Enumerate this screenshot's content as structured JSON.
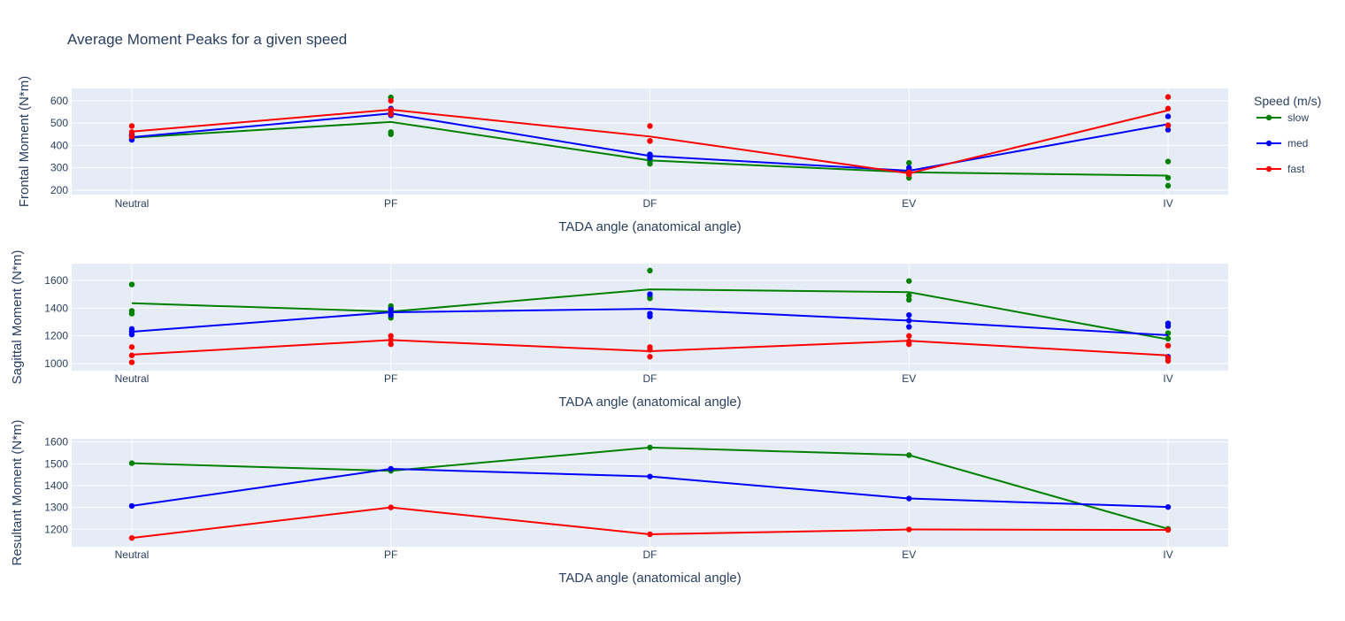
{
  "chart_data": {
    "type": "line",
    "title": "Average Moment Peaks for a given speed",
    "legend": {
      "title": "Speed (m/s)",
      "placement": "right",
      "entries": [
        "slow",
        "med",
        "fast"
      ]
    },
    "colors": {
      "slow": "#008000",
      "med": "#0000ff",
      "fast": "#ff0000",
      "plot_bg": "#e5ecf6",
      "text": "#2a3f5f"
    },
    "categories": [
      "Neutral",
      "PF",
      "DF",
      "EV",
      "IV"
    ],
    "subplots": [
      {
        "ylabel": "Frontal Moment (N*m)",
        "xlabel": "TADA angle (anatomical angle)",
        "ylim": [
          180,
          655
        ],
        "yticks": [
          "200",
          "300",
          "400",
          "500",
          "600"
        ],
        "series": [
          {
            "name": "slow",
            "line": [
              435,
              505,
              333,
              280,
              265
            ],
            "points": [
              [
                430,
                445,
                450
              ],
              [
                615,
                460,
                450
              ],
              [
                330,
                318,
                340
              ],
              [
                322,
                255,
                270
              ],
              [
                328,
                255,
                220
              ]
            ]
          },
          {
            "name": "med",
            "line": [
              437,
              543,
              353,
              287,
              495
            ],
            "points": [
              [
                425,
                440,
                445
              ],
              [
                565,
                535,
                545
              ],
              [
                360,
                350,
                345
              ],
              [
                300,
                290,
                280
              ],
              [
                530,
                470,
                490
              ]
            ]
          },
          {
            "name": "fast",
            "line": [
              462,
              560,
              440,
              275,
              557
            ],
            "points": [
              [
                487,
                460,
                440
              ],
              [
                600,
                540,
                560
              ],
              [
                487,
                420,
                420
              ],
              [
                280,
                270,
                275
              ],
              [
                617,
                565,
                490
              ]
            ]
          }
        ]
      },
      {
        "ylabel": "Sagittal Moment (N*m)",
        "xlabel": "TADA angle (anatomical angle)",
        "ylim": [
          950,
          1720
        ],
        "yticks": [
          "1000",
          "1200",
          "1400",
          "1600"
        ],
        "series": [
          {
            "name": "slow",
            "line": [
              1435,
              1375,
              1535,
              1515,
              1175
            ],
            "points": [
              [
                1570,
                1380,
                1360
              ],
              [
                1415,
                1400,
                1330
              ],
              [
                1670,
                1470,
                1480
              ],
              [
                1595,
                1490,
                1460
              ],
              [
                1220,
                1130,
                1180
              ]
            ]
          },
          {
            "name": "med",
            "line": [
              1230,
              1370,
              1395,
              1310,
              1205
            ],
            "points": [
              [
                1250,
                1230,
                1210
              ],
              [
                1390,
                1370,
                1350
              ],
              [
                1500,
                1360,
                1340
              ],
              [
                1350,
                1310,
                1265
              ],
              [
                1290,
                1270,
                1050
              ]
            ]
          },
          {
            "name": "fast",
            "line": [
              1065,
              1170,
              1090,
              1165,
              1060
            ],
            "points": [
              [
                1120,
                1060,
                1010
              ],
              [
                1200,
                1170,
                1140
              ],
              [
                1120,
                1100,
                1050
              ],
              [
                1200,
                1160,
                1140
              ],
              [
                1130,
                1040,
                1020
              ]
            ]
          }
        ]
      },
      {
        "ylabel": "Resultant Moment (N*m)",
        "xlabel": "TADA angle (anatomical angle)",
        "ylim": [
          1120,
          1615
        ],
        "yticks": [
          "1200",
          "1300",
          "1400",
          "1500",
          "1600"
        ],
        "series": [
          {
            "name": "slow",
            "line": [
              1503,
              1468,
              1575,
              1540,
              1202
            ],
            "points": [
              [
                1503
              ],
              [
                1468
              ],
              [
                1575
              ],
              [
                1540
              ],
              [
                1202
              ]
            ]
          },
          {
            "name": "med",
            "line": [
              1307,
              1477,
              1442,
              1341,
              1302
            ],
            "points": [
              [
                1307
              ],
              [
                1477
              ],
              [
                1442
              ],
              [
                1341
              ],
              [
                1302
              ]
            ]
          },
          {
            "name": "fast",
            "line": [
              1160,
              1300,
              1177,
              1199,
              1197
            ],
            "points": [
              [
                1160
              ],
              [
                1300
              ],
              [
                1177
              ],
              [
                1199
              ],
              [
                1197
              ]
            ]
          }
        ]
      }
    ]
  }
}
